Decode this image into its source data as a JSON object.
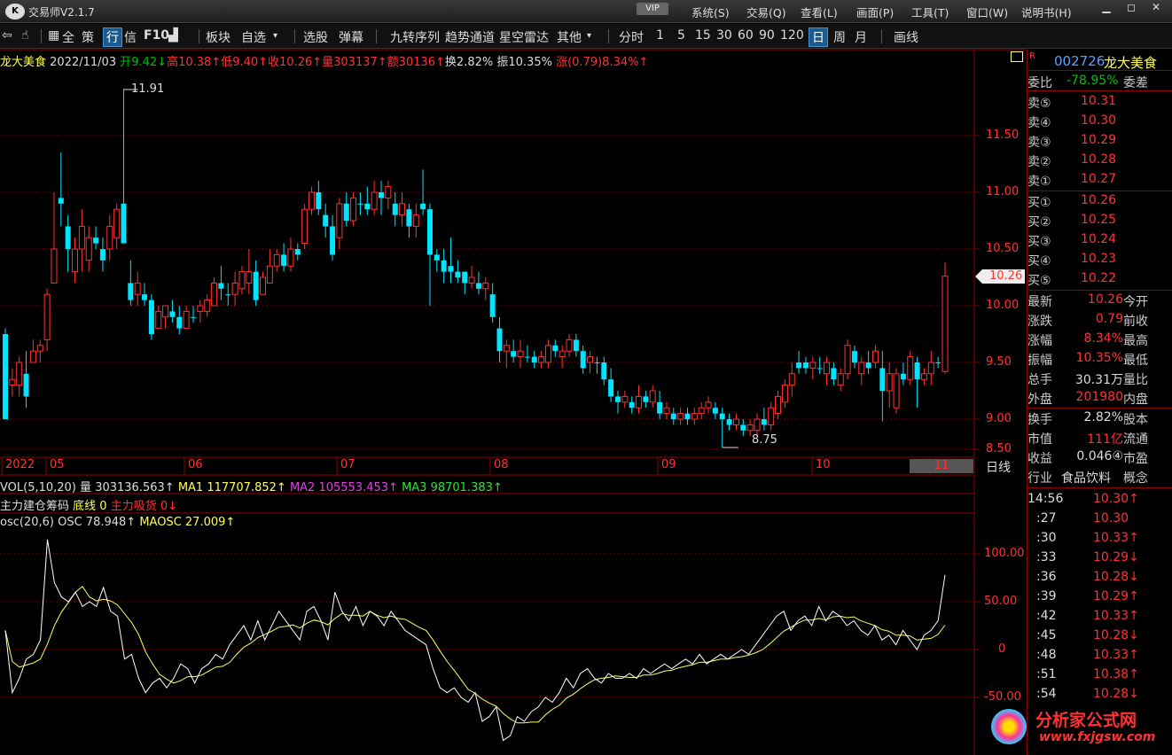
{
  "app": {
    "logo": "K",
    "title": "交易师V2.1.7",
    "vip": "VIP"
  },
  "menu": [
    "系统(S)",
    "交易(Q)",
    "查看(L)",
    "画面(P)",
    "工具(T)",
    "窗口(W)",
    "说明书(H)"
  ],
  "toolbar": {
    "items": [
      "全",
      "策",
      "行",
      "信",
      "F10",
      "板块",
      "自选",
      "选股",
      "弹幕",
      "九转序列",
      "趋势通道",
      "星空雷达",
      "其他",
      "分时",
      "1",
      "5",
      "15",
      "30",
      "60",
      "90",
      "120",
      "日",
      "周",
      "月",
      "画线"
    ],
    "active": [
      "行",
      "日"
    ]
  },
  "info": {
    "name": "龙大美食",
    "date": "2022/11/03",
    "open": "开9.42↓",
    "high": "高10.38↑",
    "low": "低9.40↑",
    "close": "收10.26↑",
    "vol": "量303137↑",
    "amount": "额30136↑",
    "turnover": "换2.82%",
    "amplitude": "振10.35%",
    "change": "涨(0.79)8.34%↑"
  },
  "kline": {
    "price_labels": [
      "11.50",
      "11.00",
      "10.50",
      "10.00",
      "9.50",
      "9.00",
      "8.50"
    ],
    "max_label": "11.91",
    "min_label": "8.75",
    "current_price": "10.26",
    "month_labels": [
      "2022",
      "05",
      "06",
      "07",
      "08",
      "09",
      "10",
      "11"
    ],
    "period_label": "日线"
  },
  "vol": {
    "label": "VOL(5,10,20)",
    "liang": "量",
    "val": "303136.563↑",
    "ma1": "MA1 117707.852↑",
    "ma2": "MA2 105553.453↑",
    "ma3": "MA3 98701.383↑"
  },
  "zl": {
    "name": "主力建仓筹码",
    "base": "底线 0",
    "absorb": "主力吸货 0↓"
  },
  "osc": {
    "label": "osc(20,6)",
    "osc": "OSC 78.948↑",
    "maosc": "MAOSC 27.009↑",
    "axis": [
      "100.00",
      "50.00",
      "0",
      "-50.00"
    ]
  },
  "right": {
    "code": "002726",
    "name": "龙大美食",
    "weibi_label": "委比",
    "weibi_val": "-78.95%",
    "weicha_label": "委差",
    "sell": [
      [
        "卖⑤",
        "10.31"
      ],
      [
        "卖④",
        "10.30"
      ],
      [
        "卖③",
        "10.29"
      ],
      [
        "卖②",
        "10.28"
      ],
      [
        "卖①",
        "10.27"
      ]
    ],
    "buy": [
      [
        "买①",
        "10.26"
      ],
      [
        "买②",
        "10.25"
      ],
      [
        "买③",
        "10.24"
      ],
      [
        "买④",
        "10.23"
      ],
      [
        "买⑤",
        "10.22"
      ]
    ],
    "stats": [
      [
        "最新",
        "10.26",
        "今开"
      ],
      [
        "涨跌",
        "0.79",
        "前收"
      ],
      [
        "涨幅",
        "8.34%",
        "最高"
      ],
      [
        "振幅",
        "10.35%",
        "最低"
      ],
      [
        "总手",
        "30.31万",
        "量比"
      ],
      [
        "外盘",
        "201980",
        "内盘"
      ],
      [
        "换手",
        "2.82%",
        "股本"
      ],
      [
        "市值",
        "111亿",
        "流通"
      ],
      [
        "收益",
        "0.046④",
        "市盈"
      ],
      [
        "行业",
        "食品饮料",
        "概念"
      ]
    ],
    "ticks": [
      [
        "14:56",
        "10.30↑"
      ],
      [
        ":27",
        "10.30"
      ],
      [
        ":30",
        "10.33↑"
      ],
      [
        ":33",
        "10.29↓"
      ],
      [
        ":36",
        "10.28↓"
      ],
      [
        ":39",
        "10.29↑"
      ],
      [
        ":42",
        "10.33↑"
      ],
      [
        ":45",
        "10.28↓"
      ],
      [
        ":48",
        "10.33↑"
      ],
      [
        ":51",
        "10.38↑"
      ],
      [
        ":54",
        "10.28↓"
      ]
    ]
  },
  "watermark": {
    "title": "分析家公式网",
    "url": "www.fxjgsw.com"
  },
  "colors": {
    "up": "#ff3333",
    "down": "#00e5ff",
    "grid": "#8b0000",
    "osc": "#ffffff",
    "maosc": "#ffff66"
  }
}
